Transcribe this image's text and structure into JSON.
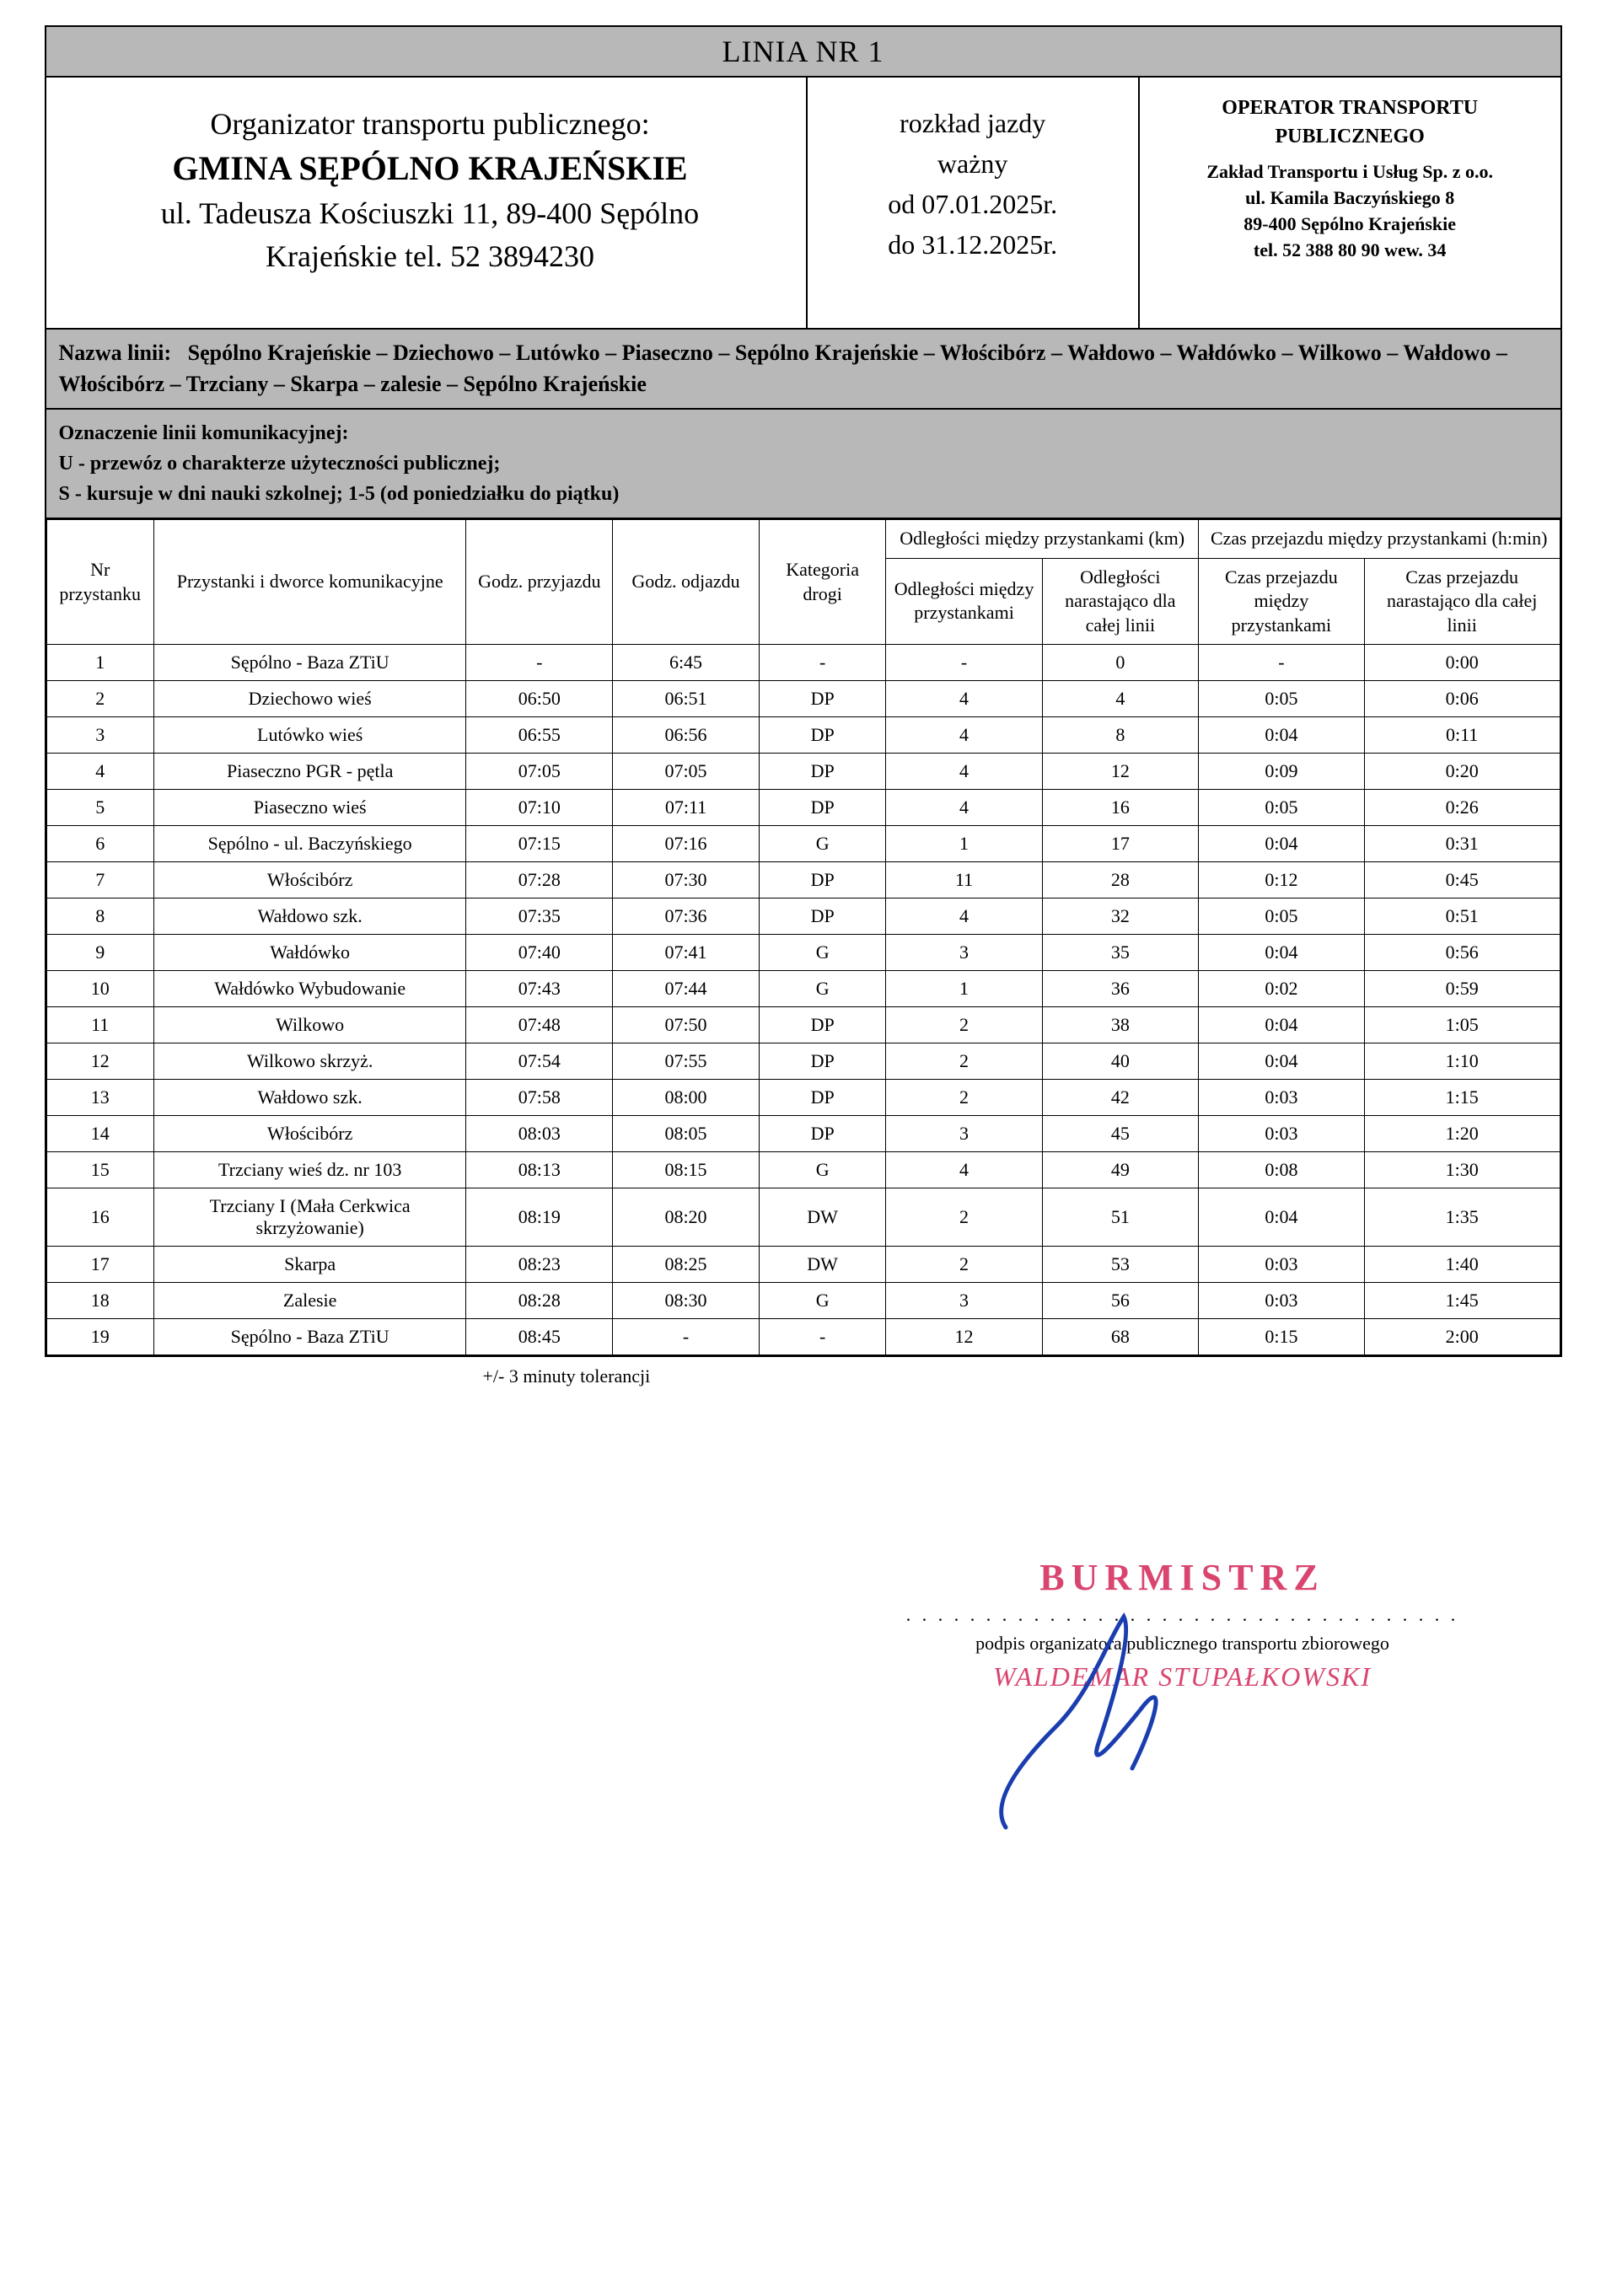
{
  "header": {
    "line_title": "LINIA NR 1"
  },
  "organizer": {
    "label": "Organizator transportu publicznego:",
    "name": "GMINA SĘPÓLNO KRAJEŃSKIE",
    "address_line1": "ul. Tadeusza Kościuszki 11, 89-400 Sępólno",
    "address_line2": "Krajeńskie tel. 52 3894230"
  },
  "validity": {
    "label1": "rozkład jazdy",
    "label2": "ważny",
    "from": "od  07.01.2025r.",
    "to": "do 31.12.2025r."
  },
  "operator": {
    "title": "OPERATOR TRANSPORTU PUBLICZNEGO",
    "name": "Zakład Transportu i Usług Sp. z o.o.",
    "addr1": "ul. Kamila Baczyńskiego 8",
    "addr2": "89-400 Sępólno Krajeńskie",
    "phone": "tel. 52 388 80 90  wew. 34"
  },
  "route": {
    "label": "Nazwa linii:",
    "text": "Sępólno Krajeńskie – Dziechowo – Lutówko – Piaseczno – Sępólno Krajeńskie – Włościbórz – Wałdowo – Wałdówko – Wilkowo – Wałdowo – Włościbórz – Trzciany – Skarpa – zalesie – Sępólno Krajeńskie"
  },
  "legend": {
    "title": "Oznaczenie linii komunikacyjnej:",
    "line1": "U - przewóz o charakterze użyteczności publicznej;",
    "line2": "S - kursuje w dni nauki szkolnej;  1-5 (od poniedziałku do piątku)"
  },
  "columns": {
    "nr": "Nr przystanku",
    "stop": "Przystanki i dworce komunikacyjne",
    "arr": "Godz. przyjazdu",
    "dep": "Godz. odjazdu",
    "road": "Kategoria drogi",
    "dist_group": "Odległości między przystankami (km)",
    "time_group": "Czas przejazdu między przystankami (h:min)",
    "dist_between": "Odległości między przystankami",
    "dist_cum": "Odległości narastająco dla całej linii",
    "time_between": "Czas przejazdu między przystankami",
    "time_cum": "Czas przejazdu narastająco dla całej linii"
  },
  "rows": [
    {
      "nr": "1",
      "stop": "Sępólno - Baza ZTiU",
      "arr": "-",
      "dep": "6:45",
      "road": "-",
      "db": "-",
      "dc": "0",
      "tb": "-",
      "tc": "0:00"
    },
    {
      "nr": "2",
      "stop": "Dziechowo wieś",
      "arr": "06:50",
      "dep": "06:51",
      "road": "DP",
      "db": "4",
      "dc": "4",
      "tb": "0:05",
      "tc": "0:06"
    },
    {
      "nr": "3",
      "stop": "Lutówko wieś",
      "arr": "06:55",
      "dep": "06:56",
      "road": "DP",
      "db": "4",
      "dc": "8",
      "tb": "0:04",
      "tc": "0:11"
    },
    {
      "nr": "4",
      "stop": "Piaseczno PGR - pętla",
      "arr": "07:05",
      "dep": "07:05",
      "road": "DP",
      "db": "4",
      "dc": "12",
      "tb": "0:09",
      "tc": "0:20"
    },
    {
      "nr": "5",
      "stop": "Piaseczno wieś",
      "arr": "07:10",
      "dep": "07:11",
      "road": "DP",
      "db": "4",
      "dc": "16",
      "tb": "0:05",
      "tc": "0:26"
    },
    {
      "nr": "6",
      "stop": "Sępólno - ul. Baczyńskiego",
      "arr": "07:15",
      "dep": "07:16",
      "road": "G",
      "db": "1",
      "dc": "17",
      "tb": "0:04",
      "tc": "0:31"
    },
    {
      "nr": "7",
      "stop": "Włościbórz",
      "arr": "07:28",
      "dep": "07:30",
      "road": "DP",
      "db": "11",
      "dc": "28",
      "tb": "0:12",
      "tc": "0:45"
    },
    {
      "nr": "8",
      "stop": "Wałdowo szk.",
      "arr": "07:35",
      "dep": "07:36",
      "road": "DP",
      "db": "4",
      "dc": "32",
      "tb": "0:05",
      "tc": "0:51"
    },
    {
      "nr": "9",
      "stop": "Wałdówko",
      "arr": "07:40",
      "dep": "07:41",
      "road": "G",
      "db": "3",
      "dc": "35",
      "tb": "0:04",
      "tc": "0:56"
    },
    {
      "nr": "10",
      "stop": "Wałdówko Wybudowanie",
      "arr": "07:43",
      "dep": "07:44",
      "road": "G",
      "db": "1",
      "dc": "36",
      "tb": "0:02",
      "tc": "0:59"
    },
    {
      "nr": "11",
      "stop": "Wilkowo",
      "arr": "07:48",
      "dep": "07:50",
      "road": "DP",
      "db": "2",
      "dc": "38",
      "tb": "0:04",
      "tc": "1:05"
    },
    {
      "nr": "12",
      "stop": "Wilkowo skrzyż.",
      "arr": "07:54",
      "dep": "07:55",
      "road": "DP",
      "db": "2",
      "dc": "40",
      "tb": "0:04",
      "tc": "1:10"
    },
    {
      "nr": "13",
      "stop": "Wałdowo szk.",
      "arr": "07:58",
      "dep": "08:00",
      "road": "DP",
      "db": "2",
      "dc": "42",
      "tb": "0:03",
      "tc": "1:15"
    },
    {
      "nr": "14",
      "stop": "Włościbórz",
      "arr": "08:03",
      "dep": "08:05",
      "road": "DP",
      "db": "3",
      "dc": "45",
      "tb": "0:03",
      "tc": "1:20"
    },
    {
      "nr": "15",
      "stop": "Trzciany wieś dz. nr 103",
      "arr": "08:13",
      "dep": "08:15",
      "road": "G",
      "db": "4",
      "dc": "49",
      "tb": "0:08",
      "tc": "1:30"
    },
    {
      "nr": "16",
      "stop": "Trzciany I (Mała Cerkwica skrzyżowanie)",
      "arr": "08:19",
      "dep": "08:20",
      "road": "DW",
      "db": "2",
      "dc": "51",
      "tb": "0:04",
      "tc": "1:35"
    },
    {
      "nr": "17",
      "stop": "Skarpa",
      "arr": "08:23",
      "dep": "08:25",
      "road": "DW",
      "db": "2",
      "dc": "53",
      "tb": "0:03",
      "tc": "1:40"
    },
    {
      "nr": "18",
      "stop": "Zalesie",
      "arr": "08:28",
      "dep": "08:30",
      "road": "G",
      "db": "3",
      "dc": "56",
      "tb": "0:03",
      "tc": "1:45"
    },
    {
      "nr": "19",
      "stop": "Sępólno - Baza ZTiU",
      "arr": "08:45",
      "dep": "-",
      "road": "-",
      "db": "12",
      "dc": "68",
      "tb": "0:15",
      "tc": "2:00"
    }
  ],
  "tolerance": "+/- 3 minuty tolerancji",
  "signature": {
    "stamp_title": "BURMISTRZ",
    "caption": "podpis organizatora publicznego transportu zbiorowego",
    "stamp_name": "WALDEMAR STUPAŁKOWSKI"
  },
  "colors": {
    "header_bg": "#b8b8b8",
    "stamp_color": "#d9456f",
    "ink": "#1a3db0"
  }
}
